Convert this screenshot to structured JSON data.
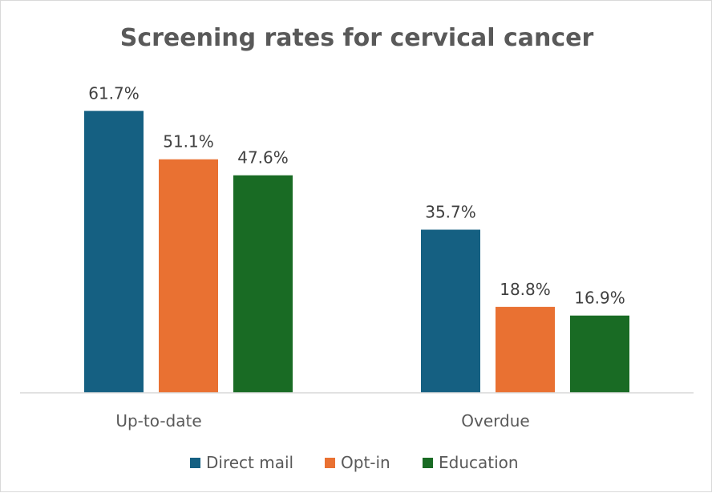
{
  "chart_data": {
    "type": "bar",
    "title": "Screening rates for cervical cancer",
    "categories": [
      "Up-to-date",
      "Overdue"
    ],
    "series": [
      {
        "name": "Direct mail",
        "values": [
          61.7,
          35.7
        ],
        "labels": [
          "61.7%",
          "35.7%"
        ],
        "color": "#156082"
      },
      {
        "name": "Opt-in",
        "values": [
          51.1,
          18.8
        ],
        "labels": [
          "51.1%",
          "18.8%"
        ],
        "color": "#E97132"
      },
      {
        "name": "Education",
        "values": [
          47.6,
          16.9
        ],
        "labels": [
          "47.6%",
          "16.9%"
        ],
        "color": "#196B24"
      }
    ],
    "xlabel": "",
    "ylabel": "",
    "ylim": [
      0,
      70
    ],
    "grid": false,
    "legend_position": "bottom"
  }
}
